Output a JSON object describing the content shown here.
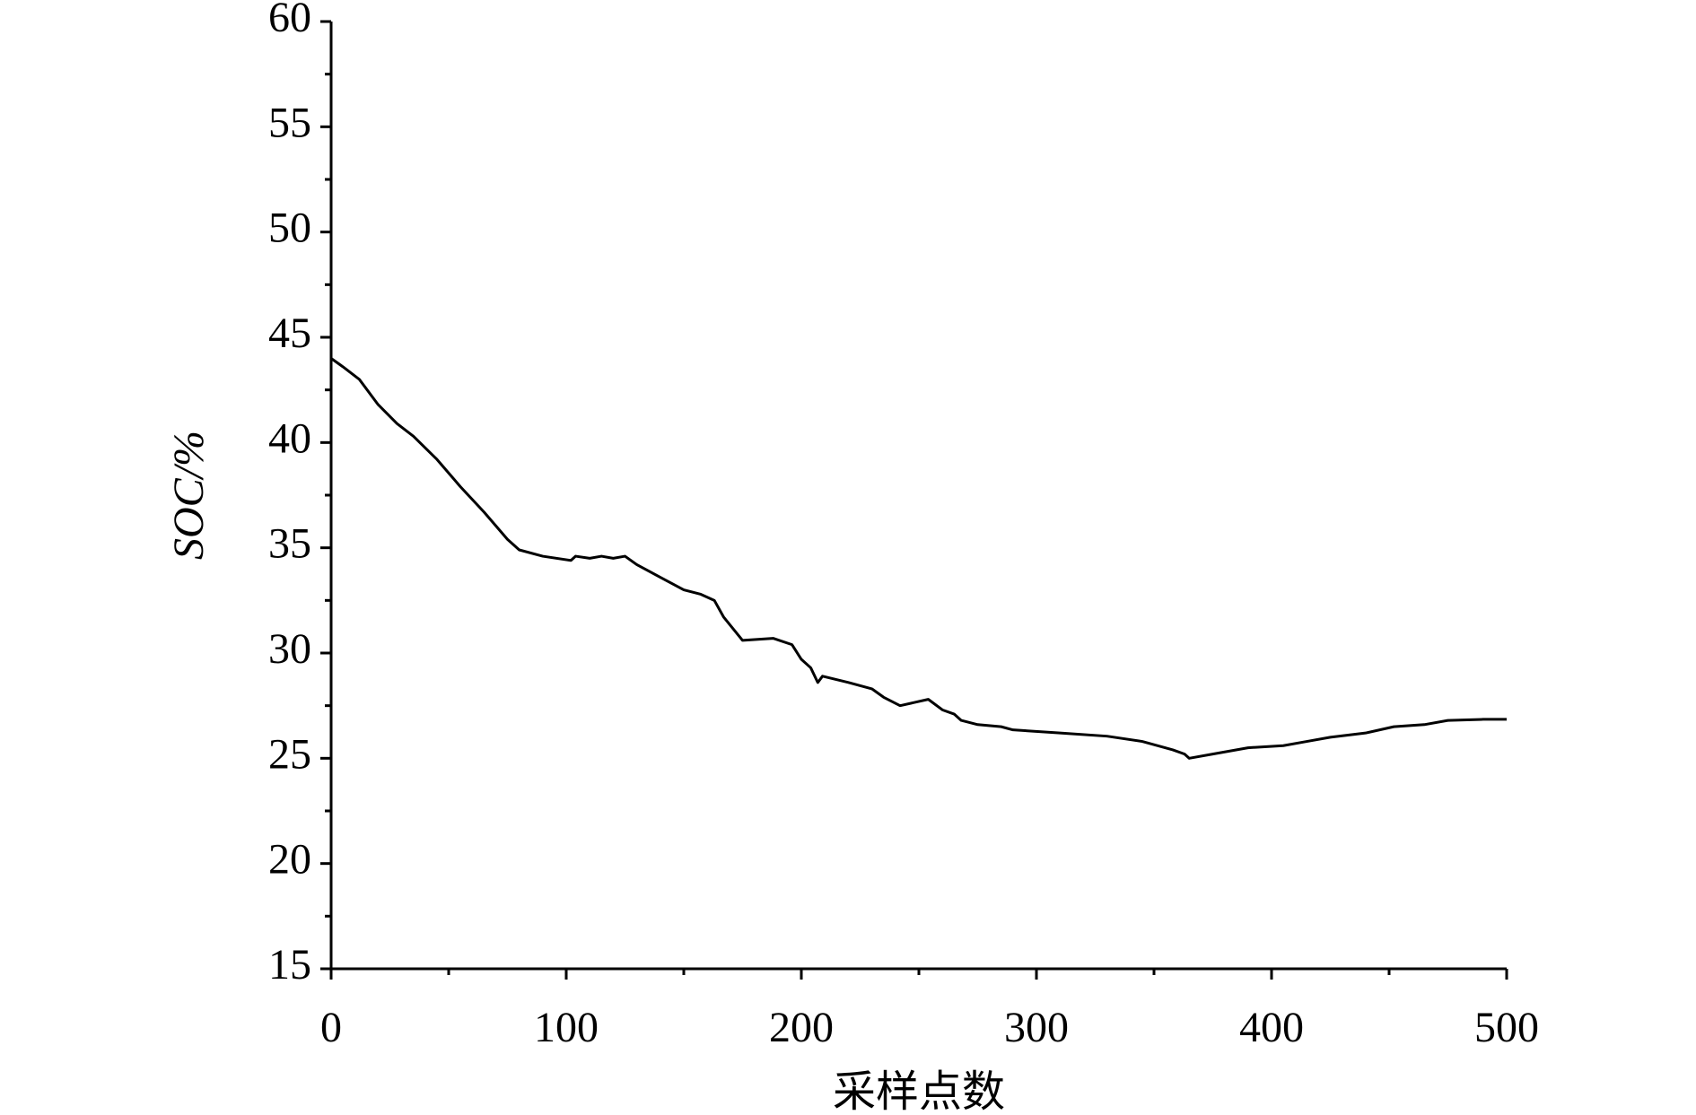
{
  "chart_data": {
    "type": "line",
    "xlabel": "采样点数",
    "ylabel": "SOC/%",
    "xlim": [
      0,
      500
    ],
    "xticks": [
      0,
      100,
      200,
      300,
      400,
      500
    ],
    "ylim": [
      15,
      60
    ],
    "yticks": [
      15,
      20,
      25,
      30,
      35,
      40,
      45,
      50,
      55,
      60
    ],
    "grid": false,
    "series": [
      {
        "name": null,
        "color": "#000000",
        "x": [
          0,
          5,
          12,
          20,
          28,
          35,
          45,
          55,
          65,
          75,
          80,
          90,
          102,
          104,
          110,
          115,
          120,
          125,
          130,
          140,
          150,
          157,
          163,
          167,
          175,
          188,
          196,
          200,
          204,
          207,
          209,
          220,
          230,
          235,
          242,
          254,
          260,
          265,
          268,
          275,
          285,
          290,
          310,
          330,
          345,
          358,
          363,
          365,
          375,
          390,
          405,
          415,
          425,
          440,
          452,
          465,
          475,
          490,
          500
        ],
        "values": [
          44,
          43.6,
          43,
          41.8,
          40.9,
          40.3,
          39.2,
          37.9,
          36.7,
          35.4,
          34.9,
          34.6,
          34.4,
          34.6,
          34.5,
          34.6,
          34.5,
          34.6,
          34.2,
          33.6,
          33,
          32.8,
          32.5,
          31.7,
          30.6,
          30.7,
          30.4,
          29.7,
          29.3,
          28.6,
          28.9,
          28.6,
          28.3,
          27.9,
          27.5,
          27.8,
          27.3,
          27.1,
          26.8,
          26.6,
          26.5,
          26.35,
          26.2,
          26.05,
          25.8,
          25.4,
          25.2,
          25.0,
          25.2,
          25.5,
          25.6,
          25.8,
          26.0,
          26.2,
          26.5,
          26.6,
          26.8,
          26.85,
          26.85
        ]
      }
    ]
  }
}
